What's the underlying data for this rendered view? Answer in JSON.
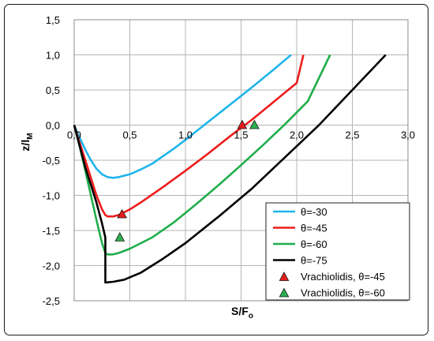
{
  "chart_data": {
    "type": "line",
    "title": "",
    "xlabel": "S/F",
    "xlabel_sub": "o",
    "ylabel": "z/l",
    "ylabel_sub": "M",
    "xlim": [
      0,
      3
    ],
    "ylim": [
      -2.5,
      1.5
    ],
    "xticks": [
      0,
      0.5,
      1,
      1.5,
      2,
      2.5,
      3
    ],
    "xtick_labels": [
      "0,0",
      "0,5",
      "1,0",
      "1,5",
      "2,0",
      "2,5",
      "3,0"
    ],
    "yticks": [
      1.5,
      1.0,
      0.5,
      0.0,
      -0.5,
      -1.0,
      -1.5,
      -2.0,
      -2.5
    ],
    "ytick_labels": [
      "1,5",
      "1,0",
      "0,5",
      "0,0",
      "-0,5",
      "-1,0",
      "-1,5",
      "-2,0",
      "-2,5"
    ],
    "grid": true,
    "legend_position": "bottom-right",
    "series": [
      {
        "name": "θ=-30",
        "kind": "line",
        "color": "#1fb4ec",
        "x": [
          0,
          0.05,
          0.1,
          0.15,
          0.2,
          0.25,
          0.3,
          0.35,
          0.4,
          0.5,
          0.6,
          0.7,
          0.8,
          0.9,
          1.0,
          1.2,
          1.4,
          1.6,
          1.8,
          1.95
        ],
        "y": [
          0,
          -0.18,
          -0.35,
          -0.5,
          -0.62,
          -0.7,
          -0.74,
          -0.75,
          -0.74,
          -0.7,
          -0.63,
          -0.55,
          -0.44,
          -0.33,
          -0.21,
          0.04,
          0.29,
          0.54,
          0.8,
          1.0
        ]
      },
      {
        "name": "θ=-45",
        "kind": "line",
        "color": "#ee1c1c",
        "x": [
          0,
          0.05,
          0.1,
          0.15,
          0.2,
          0.25,
          0.28,
          0.3,
          0.35,
          0.4,
          0.5,
          0.6,
          0.8,
          1.0,
          1.2,
          1.4,
          1.6,
          1.8,
          2.0,
          2.06
        ],
        "y": [
          0,
          -0.25,
          -0.5,
          -0.75,
          -1.0,
          -1.2,
          -1.28,
          -1.3,
          -1.3,
          -1.28,
          -1.2,
          -1.1,
          -0.88,
          -0.65,
          -0.41,
          -0.16,
          0.08,
          0.34,
          0.6,
          1.0
        ]
      },
      {
        "name": "θ=-60",
        "kind": "line",
        "color": "#1fad4b",
        "x": [
          0,
          0.05,
          0.1,
          0.15,
          0.2,
          0.25,
          0.28,
          0.3,
          0.35,
          0.4,
          0.5,
          0.7,
          0.9,
          1.1,
          1.3,
          1.5,
          1.7,
          1.9,
          2.1,
          2.3
        ],
        "y": [
          0,
          -0.3,
          -0.65,
          -1.0,
          -1.35,
          -1.68,
          -1.82,
          -1.84,
          -1.84,
          -1.82,
          -1.76,
          -1.6,
          -1.38,
          -1.12,
          -0.85,
          -0.57,
          -0.28,
          0.02,
          0.34,
          1.0
        ]
      },
      {
        "name": "θ=-75",
        "kind": "line",
        "color": "#000000",
        "x": [
          0,
          0.05,
          0.1,
          0.15,
          0.2,
          0.25,
          0.28,
          0.28,
          0.35,
          0.45,
          0.6,
          0.8,
          1.0,
          1.3,
          1.6,
          1.9,
          2.2,
          2.5,
          2.8
        ],
        "y": [
          0,
          -0.3,
          -0.6,
          -0.85,
          -1.1,
          -1.4,
          -1.6,
          -2.24,
          -2.23,
          -2.2,
          -2.1,
          -1.9,
          -1.68,
          -1.3,
          -0.9,
          -0.45,
          0.0,
          0.5,
          1.0
        ]
      },
      {
        "name": "Vrachiolidis, θ=-45",
        "kind": "marker",
        "color": "#e51c1c",
        "x": [
          0.43,
          1.51
        ],
        "y": [
          -1.27,
          0.0
        ]
      },
      {
        "name": "Vrachiolidis, θ=-60",
        "kind": "marker",
        "color": "#2db04f",
        "x": [
          0.41,
          1.62
        ],
        "y": [
          -1.6,
          0.0
        ]
      }
    ]
  }
}
